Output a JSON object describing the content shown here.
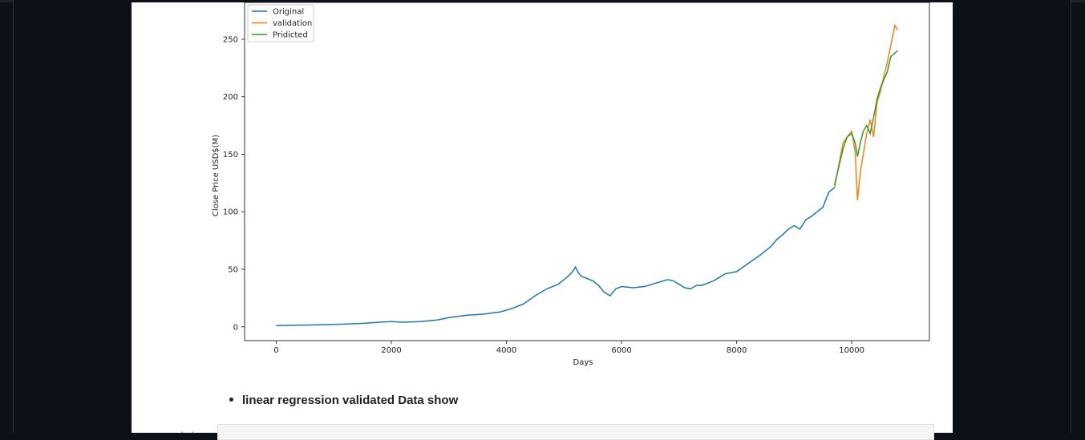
{
  "notebook": {
    "bullet_text": "linear regression validated Data show"
  },
  "chart_data": {
    "type": "line",
    "title": "",
    "xlabel": "Days",
    "ylabel": "Close Price USD$(M)",
    "xlim": [
      -550,
      11350
    ],
    "ylim": [
      -12,
      282
    ],
    "x_ticks": [
      0,
      2000,
      4000,
      6000,
      8000,
      10000
    ],
    "y_ticks": [
      0,
      50,
      100,
      150,
      200,
      250
    ],
    "legend_position": "top-left",
    "series": [
      {
        "name": "Original",
        "color": "#1f77b4",
        "x": [
          0,
          500,
          1000,
          1500,
          1800,
          2000,
          2200,
          2500,
          2800,
          3000,
          3300,
          3600,
          3900,
          4100,
          4300,
          4500,
          4700,
          4900,
          5050,
          5150,
          5200,
          5250,
          5300,
          5400,
          5500,
          5600,
          5700,
          5800,
          5900,
          6000,
          6200,
          6400,
          6600,
          6800,
          6900,
          7000,
          7100,
          7200,
          7300,
          7400,
          7500,
          7600,
          7800,
          8000,
          8200,
          8400,
          8600,
          8700,
          8800,
          8900,
          9000,
          9100,
          9200,
          9300,
          9400,
          9500,
          9600,
          9700
        ],
        "y": [
          1,
          1.5,
          2,
          3,
          4,
          4.5,
          4,
          4.5,
          6,
          8,
          10,
          11,
          13,
          16,
          20,
          27,
          33,
          37,
          43,
          48,
          52,
          47,
          44,
          42,
          40,
          36,
          30,
          27,
          33,
          35,
          34,
          35,
          38,
          41,
          40,
          37,
          34,
          33,
          36,
          36,
          38,
          40,
          46,
          48,
          55,
          62,
          70,
          76,
          80,
          85,
          88,
          85,
          93,
          96,
          100,
          104,
          117,
          121
        ]
      },
      {
        "name": "validation",
        "color": "#ff7f0e",
        "x": [
          9700,
          9780,
          9850,
          9920,
          10000,
          10060,
          10100,
          10150,
          10200,
          10260,
          10320,
          10380,
          10440,
          10500,
          10560,
          10620,
          10680,
          10750,
          10800
        ],
        "y": [
          121,
          142,
          160,
          165,
          170,
          152,
          110,
          135,
          150,
          168,
          180,
          165,
          195,
          205,
          218,
          230,
          245,
          262,
          258
        ]
      },
      {
        "name": "Pridicted",
        "color": "#2ca02c",
        "x": [
          9700,
          9780,
          9850,
          9920,
          10000,
          10060,
          10100,
          10150,
          10200,
          10260,
          10320,
          10380,
          10440,
          10500,
          10560,
          10620,
          10680,
          10750,
          10800
        ],
        "y": [
          123,
          140,
          155,
          165,
          168,
          160,
          148,
          160,
          170,
          175,
          168,
          182,
          198,
          208,
          215,
          222,
          235,
          238,
          240
        ]
      }
    ]
  }
}
